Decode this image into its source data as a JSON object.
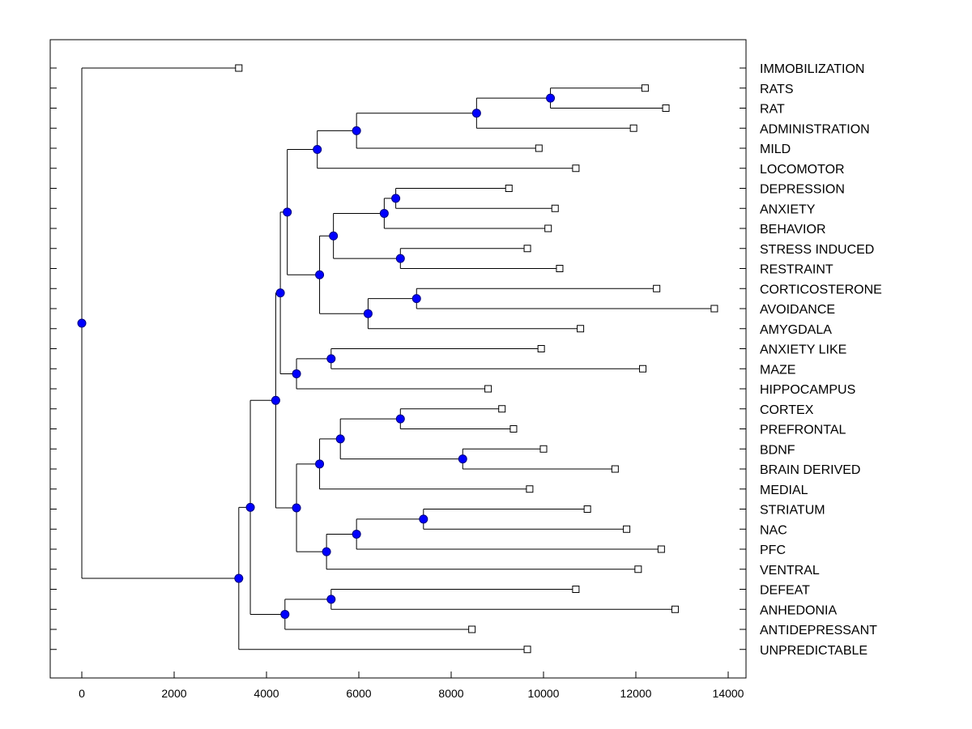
{
  "chart_data": {
    "type": "dendrogram",
    "orientation": "horizontal",
    "xlabel": "",
    "ylabel": "",
    "title": "",
    "xlim": [
      -700,
      14400
    ],
    "x_ticks": [
      0,
      2000,
      4000,
      6000,
      8000,
      10000,
      12000,
      14000
    ],
    "x_tick_labels": [
      "0",
      "2000",
      "4000",
      "6000",
      "8000",
      "10000",
      "12000",
      "14000"
    ],
    "leaves": [
      {
        "name": "IMMOBILIZATION",
        "value": 3400
      },
      {
        "name": "RATS",
        "value": 12200
      },
      {
        "name": "RAT",
        "value": 12650
      },
      {
        "name": "ADMINISTRATION",
        "value": 11950
      },
      {
        "name": "MILD",
        "value": 9900
      },
      {
        "name": "LOCOMOTOR",
        "value": 10700
      },
      {
        "name": "DEPRESSION",
        "value": 9250
      },
      {
        "name": "ANXIETY",
        "value": 10250
      },
      {
        "name": "BEHAVIOR",
        "value": 10100
      },
      {
        "name": "STRESS INDUCED",
        "value": 9650
      },
      {
        "name": "RESTRAINT",
        "value": 10350
      },
      {
        "name": "CORTICOSTERONE",
        "value": 12450
      },
      {
        "name": "AVOIDANCE",
        "value": 13700
      },
      {
        "name": "AMYGDALA",
        "value": 10800
      },
      {
        "name": "ANXIETY LIKE",
        "value": 9950
      },
      {
        "name": "MAZE",
        "value": 12150
      },
      {
        "name": "HIPPOCAMPUS",
        "value": 8800
      },
      {
        "name": "CORTEX",
        "value": 9100
      },
      {
        "name": "PREFRONTAL",
        "value": 9350
      },
      {
        "name": "BDNF",
        "value": 10000
      },
      {
        "name": "BRAIN DERIVED",
        "value": 11550
      },
      {
        "name": "MEDIAL",
        "value": 9700
      },
      {
        "name": "STRIATUM",
        "value": 10950
      },
      {
        "name": "NAC",
        "value": 11800
      },
      {
        "name": "PFC",
        "value": 12550
      },
      {
        "name": "VENTRAL",
        "value": 12050
      },
      {
        "name": "DEFEAT",
        "value": 10700
      },
      {
        "name": "ANHEDONIA",
        "value": 12850
      },
      {
        "name": "ANTIDEPRESSANT",
        "value": 8450
      },
      {
        "name": "UNPREDICTABLE",
        "value": 9650
      }
    ],
    "merges": [
      {
        "id": "n1",
        "value": 10150,
        "children": [
          "RATS",
          "RAT"
        ]
      },
      {
        "id": "n2",
        "value": 8550,
        "children": [
          "n1",
          "ADMINISTRATION"
        ]
      },
      {
        "id": "n3",
        "value": 5950,
        "children": [
          "n2",
          "MILD"
        ]
      },
      {
        "id": "n4",
        "value": 5100,
        "children": [
          "n3",
          "LOCOMOTOR"
        ]
      },
      {
        "id": "n5",
        "value": 6800,
        "children": [
          "DEPRESSION",
          "ANXIETY"
        ]
      },
      {
        "id": "n6",
        "value": 6550,
        "children": [
          "n5",
          "BEHAVIOR"
        ]
      },
      {
        "id": "n7",
        "value": 6900,
        "children": [
          "STRESS INDUCED",
          "RESTRAINT"
        ]
      },
      {
        "id": "n8",
        "value": 5450,
        "children": [
          "n6",
          "n7"
        ]
      },
      {
        "id": "n9",
        "value": 7250,
        "children": [
          "CORTICOSTERONE",
          "AVOIDANCE"
        ]
      },
      {
        "id": "n10",
        "value": 6200,
        "children": [
          "n9",
          "AMYGDALA"
        ]
      },
      {
        "id": "n11",
        "value": 5150,
        "children": [
          "n8",
          "n10"
        ]
      },
      {
        "id": "n12",
        "value": 4450,
        "children": [
          "n4",
          "n11"
        ]
      },
      {
        "id": "n13",
        "value": 5400,
        "children": [
          "ANXIETY LIKE",
          "MAZE"
        ]
      },
      {
        "id": "n14",
        "value": 4650,
        "children": [
          "n13",
          "HIPPOCAMPUS"
        ]
      },
      {
        "id": "n15",
        "value": 4300,
        "children": [
          "n12",
          "n14"
        ]
      },
      {
        "id": "n16",
        "value": 6900,
        "children": [
          "CORTEX",
          "PREFRONTAL"
        ]
      },
      {
        "id": "n17",
        "value": 8250,
        "children": [
          "BDNF",
          "BRAIN DERIVED"
        ]
      },
      {
        "id": "n18",
        "value": 5600,
        "children": [
          "n16",
          "n17"
        ]
      },
      {
        "id": "n19",
        "value": 5150,
        "children": [
          "n18",
          "MEDIAL"
        ]
      },
      {
        "id": "n20",
        "value": 7400,
        "children": [
          "STRIATUM",
          "NAC"
        ]
      },
      {
        "id": "n21",
        "value": 5950,
        "children": [
          "n20",
          "PFC"
        ]
      },
      {
        "id": "n22",
        "value": 5300,
        "children": [
          "n21",
          "VENTRAL"
        ]
      },
      {
        "id": "n23",
        "value": 4650,
        "children": [
          "n19",
          "n22"
        ]
      },
      {
        "id": "n24",
        "value": 4200,
        "children": [
          "n15",
          "n23"
        ]
      },
      {
        "id": "n25",
        "value": 5400,
        "children": [
          "DEFEAT",
          "ANHEDONIA"
        ]
      },
      {
        "id": "n26",
        "value": 4400,
        "children": [
          "n25",
          "ANTIDEPRESSANT"
        ]
      },
      {
        "id": "n27",
        "value": 3650,
        "children": [
          "n24",
          "n26"
        ]
      },
      {
        "id": "n28",
        "value": 3400,
        "children": [
          "n27",
          "UNPREDICTABLE"
        ]
      },
      {
        "id": "root",
        "value": 0,
        "children": [
          "IMMOBILIZATION",
          "n28"
        ]
      }
    ],
    "colors": {
      "node_fill": "#0000ff",
      "node_stroke": "#000080",
      "line": "#000000",
      "leaf_marker_fill": "#ffffff",
      "leaf_marker_stroke": "#000000",
      "background": "#ffffff"
    }
  }
}
